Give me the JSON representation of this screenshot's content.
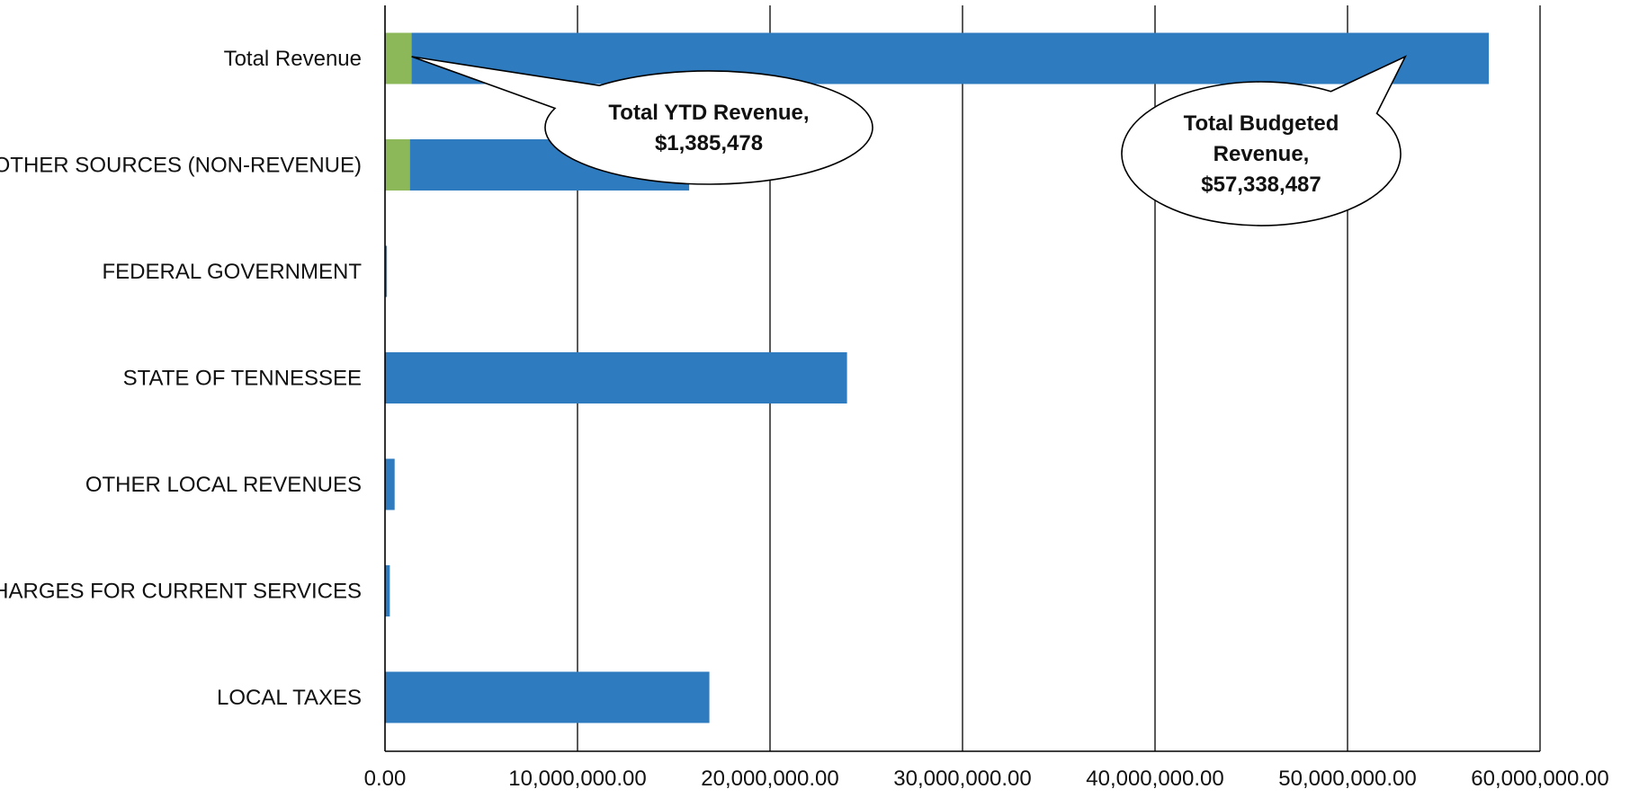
{
  "chart_data": {
    "type": "bar",
    "orientation": "horizontal",
    "stacked": "overlay",
    "title": "",
    "xlabel": "",
    "ylabel": "",
    "xlim": [
      0,
      60000000
    ],
    "x_ticks": [
      0,
      10000000,
      20000000,
      30000000,
      40000000,
      50000000,
      60000000
    ],
    "x_tick_labels": [
      "0.00",
      "10,000,000.00",
      "20,000,000.00",
      "30,000,000.00",
      "40,000,000.00",
      "50,000,000.00",
      "60,000,000.00"
    ],
    "grid": "vertical",
    "legend": "none",
    "categories": [
      "Total Revenue",
      "OTHER SOURCES (NON-REVENUE)",
      "FEDERAL GOVERNMENT",
      "STATE OF TENNESSEE",
      "OTHER LOCAL REVENUES",
      "CHARGES FOR CURRENT SERVICES",
      "LOCAL TAXES"
    ],
    "series": [
      {
        "color": "#2e7bbf",
        "values": [
          57338487,
          15800000,
          100000,
          24000000,
          500000,
          250000,
          16850000
        ]
      },
      {
        "color": "#8db85a",
        "values": [
          1385478,
          1300000,
          0,
          0,
          0,
          0,
          0
        ]
      }
    ],
    "annotations": [
      {
        "lines": [
          "Total YTD Revenue,",
          "$1,385,478"
        ],
        "target_category": "Total Revenue",
        "target_value": 1385478
      },
      {
        "lines": [
          "Total Budgeted",
          "Revenue,",
          "$57,338,487"
        ],
        "target_category": "Total Revenue",
        "target_value": 53000000
      }
    ]
  }
}
